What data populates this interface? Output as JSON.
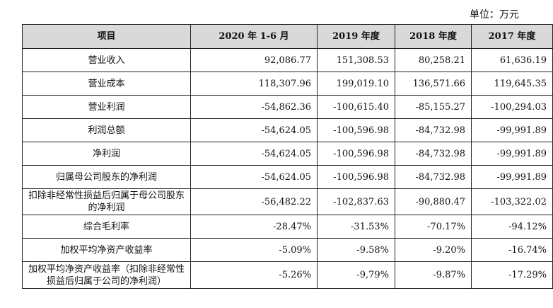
{
  "unit_label": "单位：万元",
  "table": {
    "headers": [
      "项目",
      "2020 年 1-6 月",
      "2019 年度",
      "2018 年度",
      "2017 年度"
    ],
    "rows": [
      {
        "item": "营业收入",
        "values": [
          "92,086.77",
          "151,308.53",
          "80,258.21",
          "61,636.19"
        ]
      },
      {
        "item": "营业成本",
        "values": [
          "118,307.96",
          "199,019.10",
          "136,571.66",
          "119,645.35"
        ]
      },
      {
        "item": "营业利润",
        "values": [
          "-54,862.36",
          "-100,615.40",
          "-85,155.27",
          "-100,294.03"
        ]
      },
      {
        "item": "利润总额",
        "values": [
          "-54,624.05",
          "-100,596.98",
          "-84,732.98",
          "-99,991.89"
        ]
      },
      {
        "item": "净利润",
        "values": [
          "-54,624.05",
          "-100,596.98",
          "-84,732.98",
          "-99,991.89"
        ]
      },
      {
        "item": "归属母公司股东的净利润",
        "values": [
          "-54,624.05",
          "-100,596.98",
          "-84,732.98",
          "-99,991.89"
        ]
      },
      {
        "item": "扣除非经常性损益后归属于母公司股东的净利润",
        "values": [
          "-56,482.22",
          "-102,837.63",
          "-90,880.47",
          "-103,322.02"
        ]
      },
      {
        "item": "综合毛利率",
        "values": [
          "-28.47%",
          "-31.53%",
          "-70.17%",
          "-94.12%"
        ]
      },
      {
        "item": "加权平均净资产收益率",
        "values": [
          "-5.09%",
          "-9.58%",
          "-9.20%",
          "-16.74%"
        ]
      },
      {
        "item": "加权平均净资产收益率（扣除非经常性损益后归属于公司的净利润）",
        "values": [
          "-5.26%",
          "-9,79%",
          "-9.87%",
          "-17.29%"
        ]
      }
    ]
  }
}
